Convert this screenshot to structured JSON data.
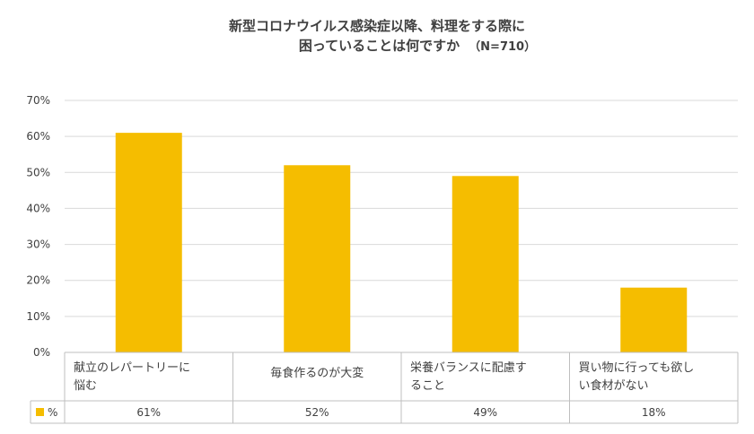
{
  "chart_data": {
    "type": "bar",
    "title_line1": "新型コロナウイルス感染症以降、料理をする際に",
    "title_line2": "困っていることは何ですか",
    "title_note": "（N=710）",
    "categories": [
      [
        "献立のレパートリーに",
        "悩む"
      ],
      [
        "毎食作るのが大変"
      ],
      [
        "栄養バランスに配慮す",
        "ること"
      ],
      [
        "買い物に行っても欲し",
        "い食材がない"
      ]
    ],
    "series": [
      {
        "name": "%",
        "values": [
          61,
          52,
          49,
          18
        ],
        "labels": [
          "61%",
          "52%",
          "49%",
          "18%"
        ]
      }
    ],
    "ylim": [
      0,
      70
    ],
    "yticks": [
      "0%",
      "10%",
      "20%",
      "30%",
      "40%",
      "50%",
      "60%",
      "70%"
    ],
    "grid": true,
    "bar_color": "#f5bd00",
    "grid_color": "#d9d9d9"
  }
}
